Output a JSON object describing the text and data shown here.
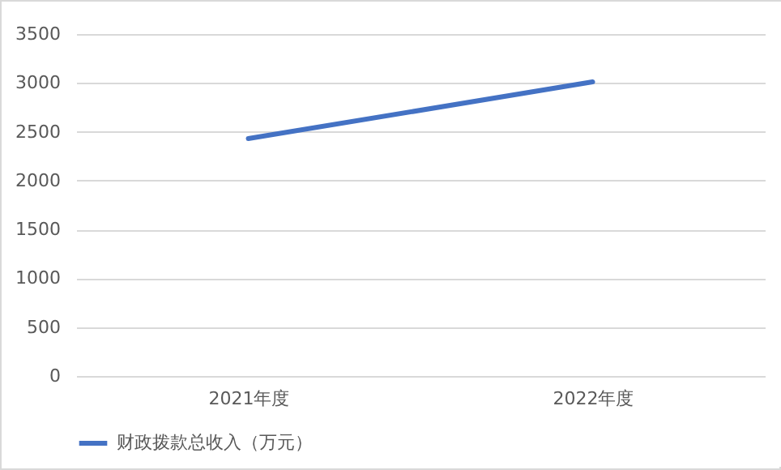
{
  "chart_data": {
    "type": "line",
    "categories": [
      "2021年度",
      "2022年度"
    ],
    "series": [
      {
        "name": "财政拨款总收入（万元）",
        "color": "#4472c4",
        "values": [
          2430,
          3010
        ]
      }
    ],
    "ylim": [
      0,
      3500
    ],
    "yticks": [
      0,
      500,
      1000,
      1500,
      2000,
      2500,
      3000,
      3500
    ],
    "grid": "y",
    "legend": "bottom",
    "marker": "none",
    "line_style": "solid"
  }
}
